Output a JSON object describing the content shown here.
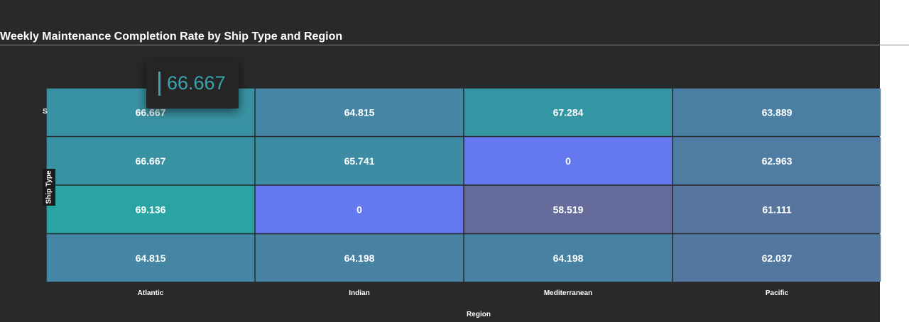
{
  "chart_data": {
    "type": "heatmap",
    "title": "Weekly Maintenance Completion Rate by Ship Type and Region",
    "xlabel": "Region",
    "ylabel": "Ship Type",
    "x_categories": [
      "Atlantic",
      "Indian",
      "Mediterranean",
      "Pacific"
    ],
    "y_categories_visible": [
      "S"
    ],
    "values": [
      [
        66.667,
        64.815,
        67.284,
        63.889
      ],
      [
        66.667,
        65.741,
        0,
        62.963
      ],
      [
        69.136,
        0,
        58.519,
        61.111
      ],
      [
        64.815,
        64.198,
        64.198,
        62.037
      ]
    ],
    "value_labels": [
      [
        "66.667",
        "64.815",
        "67.284",
        "63.889"
      ],
      [
        "66.667",
        "65.741",
        "0",
        "62.963"
      ],
      [
        "69.136",
        "0",
        "58.519",
        "61.111"
      ],
      [
        "64.815",
        "64.198",
        "64.198",
        "62.037"
      ]
    ],
    "color_scale": {
      "zero": "#6479f0",
      "low": "#656b9a",
      "mid": "#4a7fa3",
      "high": "#2aa3a3"
    },
    "grid": false,
    "legend": "none"
  },
  "tooltip": {
    "value": "66.667",
    "accent": "#3aa3ad"
  },
  "background": "#292929"
}
